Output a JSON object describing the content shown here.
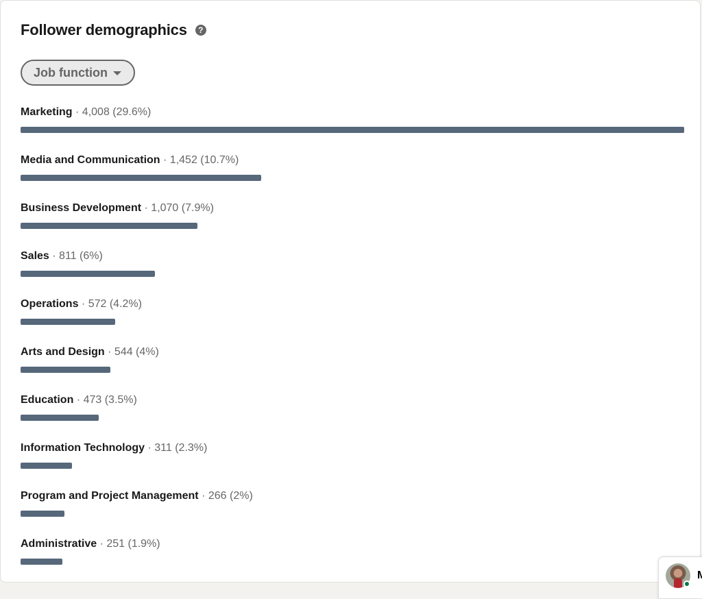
{
  "header": {
    "title": "Follower demographics",
    "help_icon": "?"
  },
  "filter": {
    "selected": "Job function"
  },
  "bar_color": "#56687a",
  "rows": [
    {
      "name": "Marketing",
      "meta": "· 4,008 (29.6%)",
      "count": 4008
    },
    {
      "name": "Media and Communication",
      "meta": "· 1,452 (10.7%)",
      "count": 1452
    },
    {
      "name": "Business Development",
      "meta": "· 1,070 (7.9%)",
      "count": 1070
    },
    {
      "name": "Sales",
      "meta": "· 811 (6%)",
      "count": 811
    },
    {
      "name": "Operations",
      "meta": "· 572 (4.2%)",
      "count": 572
    },
    {
      "name": "Arts and Design",
      "meta": "· 544 (4%)",
      "count": 544
    },
    {
      "name": "Education",
      "meta": "· 473 (3.5%)",
      "count": 473
    },
    {
      "name": "Information Technology",
      "meta": "· 311 (2.3%)",
      "count": 311
    },
    {
      "name": "Program and Project Management",
      "meta": "· 266 (2%)",
      "count": 266
    },
    {
      "name": "Administrative",
      "meta": "· 251 (1.9%)",
      "count": 251
    }
  ],
  "chat": {
    "initial": "M",
    "status": "online"
  }
}
